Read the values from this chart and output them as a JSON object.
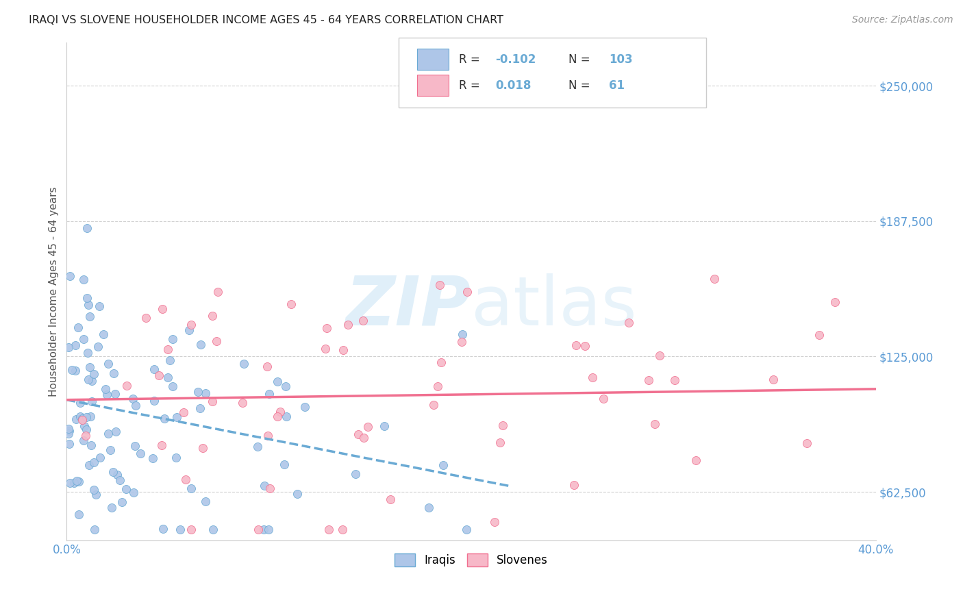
{
  "title": "IRAQI VS SLOVENE HOUSEHOLDER INCOME AGES 45 - 64 YEARS CORRELATION CHART",
  "source_text": "Source: ZipAtlas.com",
  "ylabel": "Householder Income Ages 45 - 64 years",
  "xlim": [
    0.0,
    0.4
  ],
  "ylim": [
    40000,
    270000
  ],
  "yticks": [
    62500,
    125000,
    187500,
    250000
  ],
  "ytick_labels": [
    "$62,500",
    "$125,000",
    "$187,500",
    "$250,000"
  ],
  "xticks": [
    0.0,
    0.05,
    0.1,
    0.15,
    0.2,
    0.25,
    0.3,
    0.35,
    0.4
  ],
  "xtick_labels": [
    "0.0%",
    "",
    "",
    "",
    "",
    "",
    "",
    "",
    "40.0%"
  ],
  "iraqi_fill": "#aec6e8",
  "iraqi_edge": "#6aaad4",
  "slovene_fill": "#f7b8c8",
  "slovene_edge": "#f07090",
  "iraqi_line_color": "#6aaad4",
  "slovene_line_color": "#f07090",
  "background_color": "#ffffff",
  "grid_color": "#cccccc",
  "tick_color": "#5b9bd5",
  "watermark_color": "#cce5f5",
  "seed": 7
}
